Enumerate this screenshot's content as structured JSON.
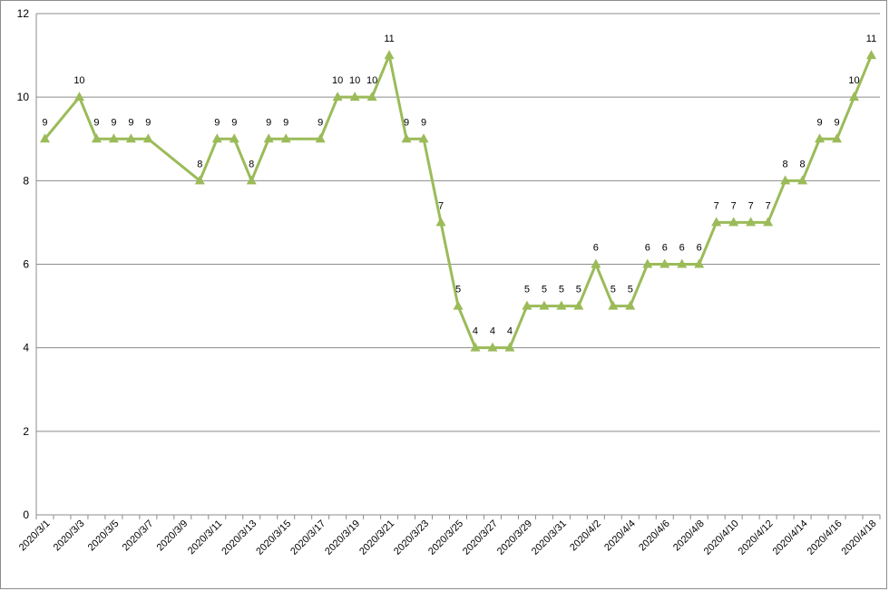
{
  "chart_data": {
    "type": "line",
    "title": "",
    "xlabel": "",
    "ylabel": "",
    "ylim": [
      0,
      12
    ],
    "yticks": [
      0,
      2,
      4,
      6,
      8,
      10,
      12
    ],
    "grid": "horizontal",
    "legend": "none",
    "colors": {
      "series": "#9bbb59",
      "grid": "#8c8c8c",
      "axis": "#8c8c8c"
    },
    "x_date_range": [
      "2020/3/1",
      "2020/4/18"
    ],
    "x_tick_labels": [
      "2020/3/1",
      "2020/3/3",
      "2020/3/5",
      "2020/3/7",
      "2020/3/9",
      "2020/3/11",
      "2020/3/13",
      "2020/3/15",
      "2020/3/17",
      "2020/3/19",
      "2020/3/21",
      "2020/3/23",
      "2020/3/25",
      "2020/3/27",
      "2020/3/29",
      "2020/3/31",
      "2020/4/2",
      "2020/4/4",
      "2020/4/6",
      "2020/4/8",
      "2020/4/10",
      "2020/4/12",
      "2020/4/14",
      "2020/4/16",
      "2020/4/18"
    ],
    "series": [
      {
        "marker": "triangle",
        "points": [
          {
            "x": "2020/3/1",
            "y": 9
          },
          {
            "x": "2020/3/3",
            "y": 10
          },
          {
            "x": "2020/3/4",
            "y": 9
          },
          {
            "x": "2020/3/5",
            "y": 9
          },
          {
            "x": "2020/3/6",
            "y": 9
          },
          {
            "x": "2020/3/7",
            "y": 9
          },
          {
            "x": "2020/3/10",
            "y": 8
          },
          {
            "x": "2020/3/11",
            "y": 9
          },
          {
            "x": "2020/3/12",
            "y": 9
          },
          {
            "x": "2020/3/13",
            "y": 8
          },
          {
            "x": "2020/3/14",
            "y": 9
          },
          {
            "x": "2020/3/15",
            "y": 9
          },
          {
            "x": "2020/3/17",
            "y": 9
          },
          {
            "x": "2020/3/18",
            "y": 10
          },
          {
            "x": "2020/3/19",
            "y": 10
          },
          {
            "x": "2020/3/20",
            "y": 10
          },
          {
            "x": "2020/3/21",
            "y": 11
          },
          {
            "x": "2020/3/22",
            "y": 9
          },
          {
            "x": "2020/3/23",
            "y": 9
          },
          {
            "x": "2020/3/24",
            "y": 7
          },
          {
            "x": "2020/3/25",
            "y": 5
          },
          {
            "x": "2020/3/26",
            "y": 4
          },
          {
            "x": "2020/3/27",
            "y": 4
          },
          {
            "x": "2020/3/28",
            "y": 4
          },
          {
            "x": "2020/3/29",
            "y": 5
          },
          {
            "x": "2020/3/30",
            "y": 5
          },
          {
            "x": "2020/3/31",
            "y": 5
          },
          {
            "x": "2020/4/1",
            "y": 5
          },
          {
            "x": "2020/4/2",
            "y": 6
          },
          {
            "x": "2020/4/3",
            "y": 5
          },
          {
            "x": "2020/4/4",
            "y": 5
          },
          {
            "x": "2020/4/5",
            "y": 6
          },
          {
            "x": "2020/4/6",
            "y": 6
          },
          {
            "x": "2020/4/7",
            "y": 6
          },
          {
            "x": "2020/4/8",
            "y": 6
          },
          {
            "x": "2020/4/9",
            "y": 7
          },
          {
            "x": "2020/4/10",
            "y": 7
          },
          {
            "x": "2020/4/11",
            "y": 7
          },
          {
            "x": "2020/4/12",
            "y": 7
          },
          {
            "x": "2020/4/13",
            "y": 8
          },
          {
            "x": "2020/4/14",
            "y": 8
          },
          {
            "x": "2020/4/15",
            "y": 9
          },
          {
            "x": "2020/4/16",
            "y": 9
          },
          {
            "x": "2020/4/17",
            "y": 10
          },
          {
            "x": "2020/4/18",
            "y": 11
          }
        ]
      }
    ]
  }
}
